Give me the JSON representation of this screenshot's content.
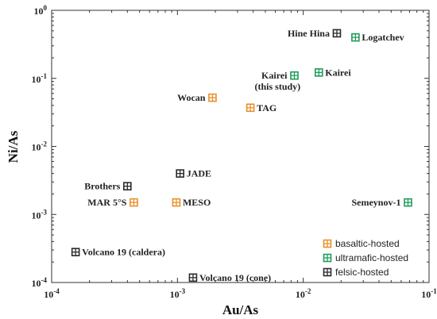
{
  "chart_data": {
    "type": "scatter",
    "xscale": "log",
    "yscale": "log",
    "xlim": [
      0.0001,
      0.1
    ],
    "ylim": [
      0.0001,
      1
    ],
    "xlabel": "Au/As",
    "ylabel": "Ni/As",
    "x_ticks": [
      {
        "value": 0.0001,
        "base": "10",
        "exp": "-4"
      },
      {
        "value": 0.001,
        "base": "10",
        "exp": "-3"
      },
      {
        "value": 0.01,
        "base": "10",
        "exp": "-2"
      },
      {
        "value": 0.1,
        "base": "10",
        "exp": "-1"
      }
    ],
    "y_ticks": [
      {
        "value": 0.0001,
        "base": "10",
        "exp": "-4"
      },
      {
        "value": 0.001,
        "base": "10",
        "exp": "-3"
      },
      {
        "value": 0.01,
        "base": "10",
        "exp": "-2"
      },
      {
        "value": 0.1,
        "base": "10",
        "exp": "-1"
      },
      {
        "value": 1,
        "base": "10",
        "exp": "0"
      }
    ],
    "legend_position": "bottom-right",
    "categories": [
      {
        "key": "basaltic",
        "name": "basaltic-hosted",
        "color": "#E8902A"
      },
      {
        "key": "ultramafic",
        "name": "ultramafic-hosted",
        "color": "#1E9C5A"
      },
      {
        "key": "felsic",
        "name": "felsic-hosted",
        "color": "#2B2B2B"
      }
    ],
    "points": [
      {
        "label": "Hine Hina",
        "x": 0.0185,
        "y": 0.46,
        "category": "felsic",
        "label_side": "left"
      },
      {
        "label": "Logatchev",
        "x": 0.026,
        "y": 0.4,
        "category": "ultramafic",
        "label_side": "right"
      },
      {
        "label": "Kairei",
        "x": 0.0133,
        "y": 0.122,
        "category": "ultramafic",
        "label_side": "right"
      },
      {
        "label": "Kairei",
        "label_line2": "(this study)",
        "x": 0.0085,
        "y": 0.11,
        "category": "ultramafic",
        "label_side": "left"
      },
      {
        "label": "Wocan",
        "x": 0.0019,
        "y": 0.052,
        "category": "basaltic",
        "label_side": "left"
      },
      {
        "label": "TAG",
        "x": 0.0038,
        "y": 0.037,
        "category": "basaltic",
        "label_side": "right"
      },
      {
        "label": "JADE",
        "x": 0.00105,
        "y": 0.004,
        "category": "felsic",
        "label_side": "right"
      },
      {
        "label": "Brothers",
        "x": 0.0004,
        "y": 0.0026,
        "category": "felsic",
        "label_side": "left"
      },
      {
        "label": "MAR 5°S",
        "x": 0.00045,
        "y": 0.0015,
        "category": "basaltic",
        "label_side": "left"
      },
      {
        "label": "MESO",
        "x": 0.00098,
        "y": 0.0015,
        "category": "basaltic",
        "label_side": "right"
      },
      {
        "label": "Semeynov-1",
        "x": 0.068,
        "y": 0.0015,
        "category": "ultramafic",
        "label_side": "left"
      },
      {
        "label": "Volcano 19 (caldera)",
        "x": 0.000155,
        "y": 0.00028,
        "category": "felsic",
        "label_side": "right"
      },
      {
        "label": "Volcano 19 (cone)",
        "x": 0.00133,
        "y": 0.000118,
        "category": "felsic",
        "label_side": "right"
      }
    ]
  }
}
